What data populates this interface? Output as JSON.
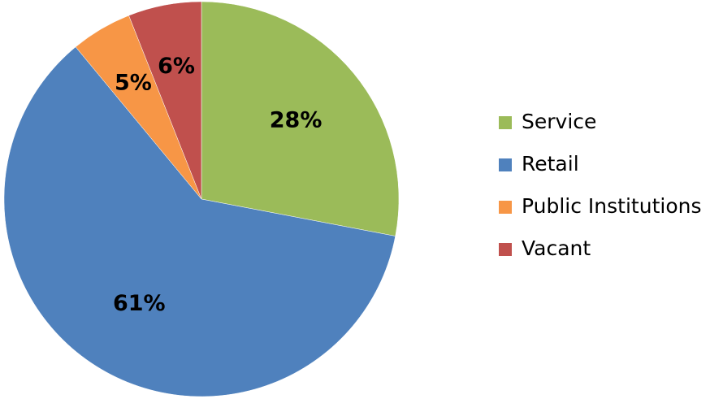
{
  "chart_data": {
    "type": "pie",
    "categories": [
      "Service",
      "Retail",
      "Public Institutions",
      "Vacant"
    ],
    "values": [
      28,
      61,
      5,
      6
    ],
    "value_labels": [
      "28%",
      "61%",
      "5%",
      "6%"
    ],
    "colors": [
      "#9bbb59",
      "#4f81bd",
      "#f79646",
      "#c0504d"
    ],
    "legend": "right"
  }
}
